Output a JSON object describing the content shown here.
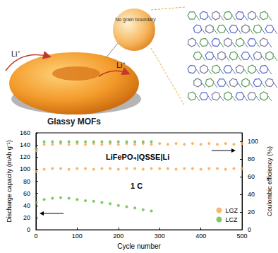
{
  "illustration": {
    "title": "Glassy MOFs",
    "inset_label": "No grain boundary",
    "ion_labels": [
      "Li⁺",
      "Li⁺"
    ]
  },
  "chart_data": {
    "type": "scatter",
    "marker": "circle",
    "annotations": [
      "LiFePO₄|QSSE|Li",
      "1 C"
    ],
    "x_label": "Cycle number",
    "y_label": "Discharge capacity (mAh g⁻¹)",
    "y2_label": "Coulombic efficiency (%)",
    "x": [
      1,
      20,
      40,
      60,
      80,
      100,
      120,
      140,
      160,
      180,
      200,
      220,
      240,
      260,
      280,
      300,
      320,
      340,
      360,
      380,
      400,
      420,
      440,
      460,
      480,
      500
    ],
    "xlim": [
      0,
      500
    ],
    "xticks": [
      0,
      100,
      200,
      300,
      400,
      500
    ],
    "ylim": [
      0,
      160
    ],
    "yticks": [
      0,
      20,
      40,
      60,
      80,
      100,
      120,
      140,
      160
    ],
    "y2lim": [
      0,
      110
    ],
    "y2ticks": [
      0,
      20,
      40,
      60,
      80,
      100
    ],
    "grid": false,
    "legend": "bottom-right",
    "series": [
      {
        "name": "LGZ",
        "color": "#f5a54a",
        "values": [
          96,
          100,
          101,
          101,
          100,
          101,
          101,
          100,
          101,
          101,
          100,
          101,
          101,
          100,
          101,
          101,
          101,
          100,
          101,
          101,
          100,
          101,
          101,
          100,
          101,
          101
        ]
      },
      {
        "name": "LCZ",
        "color": "#5dbb3f",
        "values": [
          45,
          50,
          52,
          53,
          52,
          50,
          48,
          47,
          45,
          43,
          40,
          38,
          36,
          33,
          31,
          null,
          null,
          null,
          null,
          null,
          null,
          null,
          null,
          null,
          null,
          null
        ]
      },
      {
        "name": "LGZ",
        "color": "#f5a54a",
        "axis": "y2",
        "values": [
          90,
          97,
          97,
          98,
          97,
          98,
          97,
          98,
          97,
          98,
          97,
          98,
          97,
          98,
          97,
          98,
          97,
          98,
          97,
          98,
          97,
          98,
          97,
          98,
          97,
          98
        ]
      },
      {
        "name": "LCZ",
        "color": "#5dbb3f",
        "axis": "y2",
        "values": [
          92,
          100,
          100,
          100,
          100,
          100,
          100,
          100,
          100,
          100,
          100,
          100,
          100,
          100,
          100,
          null,
          null,
          null,
          null,
          null,
          null,
          null,
          null,
          null,
          null,
          null
        ]
      }
    ]
  }
}
